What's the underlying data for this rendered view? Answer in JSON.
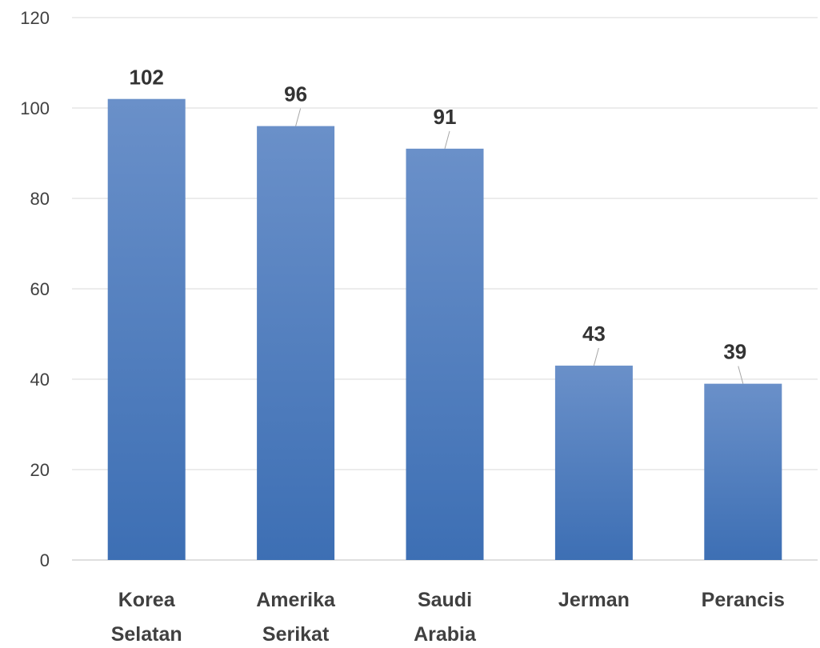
{
  "chart_data": {
    "type": "bar",
    "categories": [
      [
        "Korea",
        "Selatan"
      ],
      [
        "Amerika",
        "Serikat"
      ],
      [
        "Saudi",
        "Arabia"
      ],
      [
        "Jerman"
      ],
      [
        "Perancis"
      ]
    ],
    "values": [
      102,
      96,
      91,
      43,
      39
    ],
    "ylim": [
      0,
      120
    ],
    "yticks": [
      0,
      20,
      40,
      60,
      80,
      100,
      120
    ],
    "grid": true,
    "legend": "none",
    "bar_color_top": "#6a90c9",
    "bar_color_bottom": "#3d6fb4"
  }
}
